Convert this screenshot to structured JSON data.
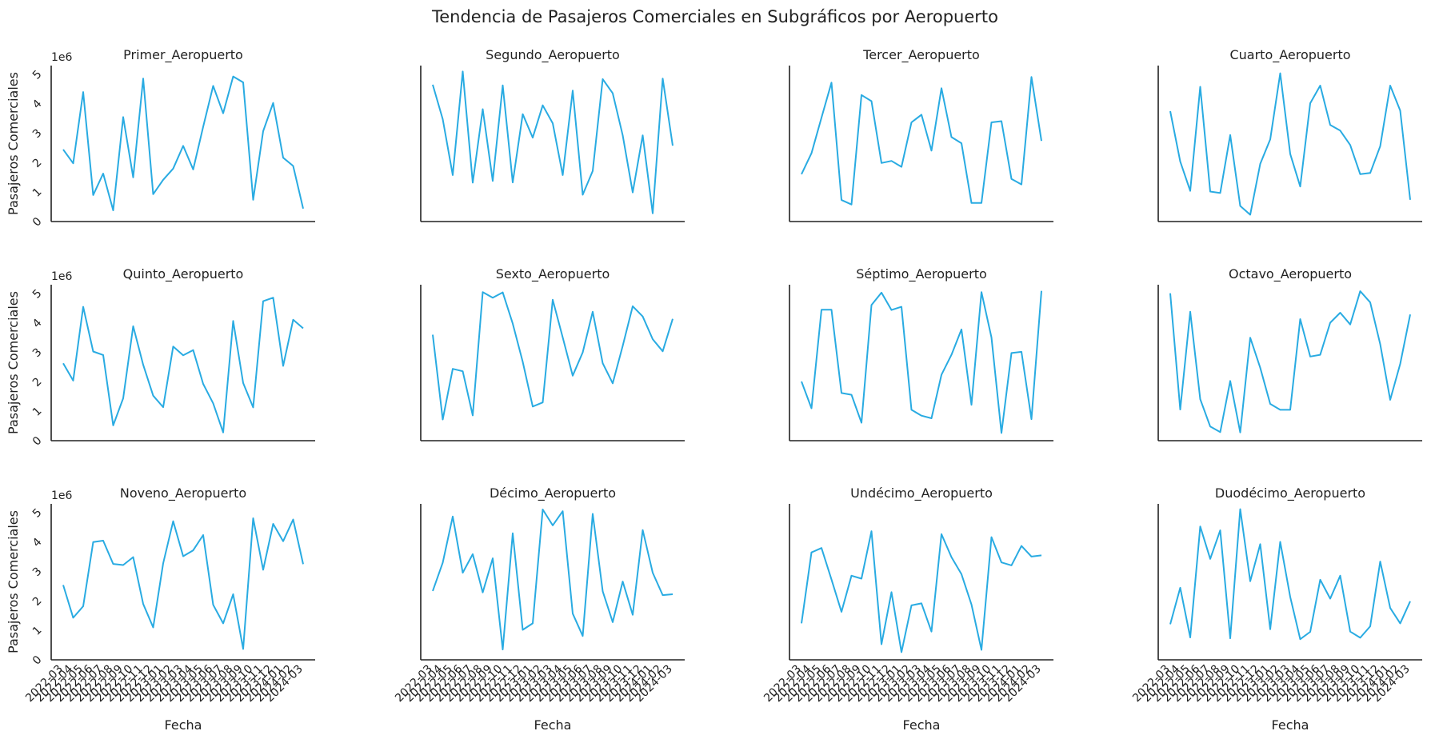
{
  "figure": {
    "title": "Tendencia de Pasajeros Comerciales en Subgráficos por Aeropuerto",
    "line_color": "#29ABE2"
  },
  "chart_data": {
    "type": "line",
    "layout": "grid 3x4, shared x and y axes",
    "title": "Tendencia de Pasajeros Comerciales en Subgráficos por Aeropuerto",
    "xlabel": "Fecha",
    "ylabel": "Pasajeros Comerciales",
    "y_offset_text": "1e6",
    "ylim": [
      0,
      5.3
    ],
    "y_ticks": [
      0,
      1,
      2,
      3,
      4,
      5
    ],
    "y_tick_labels": [
      "0",
      "1",
      "2",
      "3",
      "4",
      "5"
    ],
    "x": [
      "2022-03",
      "2022-04",
      "2022-05",
      "2022-06",
      "2022-07",
      "2022-08",
      "2022-09",
      "2022-10",
      "2022-11",
      "2022-12",
      "2023-01",
      "2023-02",
      "2023-03",
      "2023-04",
      "2023-05",
      "2023-06",
      "2023-07",
      "2023-08",
      "2023-09",
      "2023-10",
      "2023-11",
      "2023-12",
      "2024-01",
      "2024-02",
      "2024-03"
    ],
    "grid": false,
    "panels": [
      {
        "title": "Primer_Aeropuerto",
        "values": [
          2.45,
          1.98,
          4.4,
          0.9,
          1.63,
          0.38,
          3.55,
          1.5,
          4.86,
          0.93,
          1.42,
          1.8,
          2.57,
          1.77,
          3.22,
          4.61,
          3.68,
          4.93,
          4.73,
          0.74,
          3.07,
          4.03,
          2.17,
          1.89,
          0.44
        ]
      },
      {
        "title": "Segundo_Aeropuerto",
        "values": [
          4.65,
          3.48,
          1.58,
          5.1,
          1.32,
          3.82,
          1.38,
          4.63,
          1.33,
          3.65,
          2.85,
          3.95,
          3.34,
          1.58,
          4.45,
          0.91,
          1.72,
          4.84,
          4.36,
          2.93,
          0.99,
          2.93,
          0.28,
          4.86,
          2.58
        ]
      },
      {
        "title": "Tercer_Aeropuerto",
        "values": [
          1.61,
          2.32,
          3.53,
          4.72,
          0.73,
          0.58,
          4.3,
          4.09,
          1.99,
          2.06,
          1.86,
          3.37,
          3.63,
          2.41,
          4.53,
          2.87,
          2.66,
          0.63,
          0.63,
          3.37,
          3.41,
          1.45,
          1.26,
          4.91,
          2.74
        ]
      },
      {
        "title": "Cuarto_Aeropuerto",
        "values": [
          3.75,
          2.04,
          1.04,
          4.58,
          1.02,
          0.97,
          2.94,
          0.53,
          0.23,
          1.96,
          2.79,
          5.04,
          2.3,
          1.19,
          4.02,
          4.62,
          3.28,
          3.09,
          2.6,
          1.61,
          1.65,
          2.56,
          4.62,
          3.77,
          0.74
        ]
      },
      {
        "title": "Quinto_Aeropuerto",
        "values": [
          2.63,
          2.04,
          4.55,
          3.03,
          2.91,
          0.52,
          1.44,
          3.89,
          2.58,
          1.53,
          1.14,
          3.2,
          2.9,
          3.08,
          1.93,
          1.27,
          0.28,
          4.07,
          1.96,
          1.13,
          4.74,
          4.86,
          2.54,
          4.11,
          3.82
        ]
      },
      {
        "title": "Sexto_Aeropuerto",
        "values": [
          3.6,
          0.72,
          2.44,
          2.36,
          0.86,
          5.05,
          4.86,
          5.04,
          3.98,
          2.68,
          1.16,
          1.3,
          4.79,
          3.51,
          2.21,
          3.0,
          4.38,
          2.63,
          1.95,
          3.22,
          4.57,
          4.22,
          3.45,
          3.04,
          4.14
        ]
      },
      {
        "title": "Séptimo_Aeropuerto",
        "values": [
          2.01,
          1.1,
          4.45,
          4.45,
          1.62,
          1.56,
          0.61,
          4.61,
          5.03,
          4.44,
          4.55,
          1.05,
          0.85,
          0.76,
          2.24,
          2.92,
          3.78,
          1.22,
          5.05,
          3.51,
          0.26,
          2.98,
          3.02,
          0.73,
          5.09
        ]
      },
      {
        "title": "Octavo_Aeropuerto",
        "values": [
          5.01,
          1.06,
          4.38,
          1.41,
          0.48,
          0.29,
          2.03,
          0.28,
          3.5,
          2.48,
          1.25,
          1.05,
          1.05,
          4.13,
          2.86,
          2.92,
          4.01,
          4.35,
          3.95,
          5.08,
          4.7,
          3.28,
          1.39,
          2.61,
          4.29
        ]
      },
      {
        "title": "Noveno_Aeropuerto",
        "values": [
          2.54,
          1.43,
          1.82,
          4.0,
          4.05,
          3.26,
          3.22,
          3.49,
          1.9,
          1.1,
          3.28,
          4.71,
          3.52,
          3.72,
          4.24,
          1.87,
          1.24,
          2.23,
          0.37,
          4.81,
          3.06,
          4.62,
          4.03,
          4.77,
          3.25
        ]
      },
      {
        "title": "Décimo_Aeropuerto",
        "values": [
          2.34,
          3.3,
          4.87,
          2.96,
          3.59,
          2.29,
          3.45,
          0.35,
          4.3,
          1.02,
          1.24,
          5.11,
          4.57,
          5.05,
          1.57,
          0.81,
          4.96,
          2.33,
          1.28,
          2.66,
          1.53,
          4.41,
          2.96,
          2.2,
          2.23
        ]
      },
      {
        "title": "Undécimo_Aeropuerto",
        "values": [
          1.24,
          3.65,
          3.8,
          2.73,
          1.63,
          2.86,
          2.76,
          4.37,
          0.53,
          2.3,
          0.26,
          1.85,
          1.92,
          0.96,
          4.27,
          3.49,
          2.91,
          1.88,
          0.34,
          4.17,
          3.31,
          3.21,
          3.87,
          3.51,
          3.55
        ]
      },
      {
        "title": "Duodécimo_Aeropuerto",
        "values": [
          1.21,
          2.45,
          0.76,
          4.53,
          3.43,
          4.4,
          0.73,
          5.12,
          2.67,
          3.93,
          1.04,
          4.01,
          2.14,
          0.7,
          0.95,
          2.72,
          2.08,
          2.86,
          0.96,
          0.75,
          1.14,
          3.34,
          1.76,
          1.24,
          1.99
        ]
      }
    ]
  }
}
